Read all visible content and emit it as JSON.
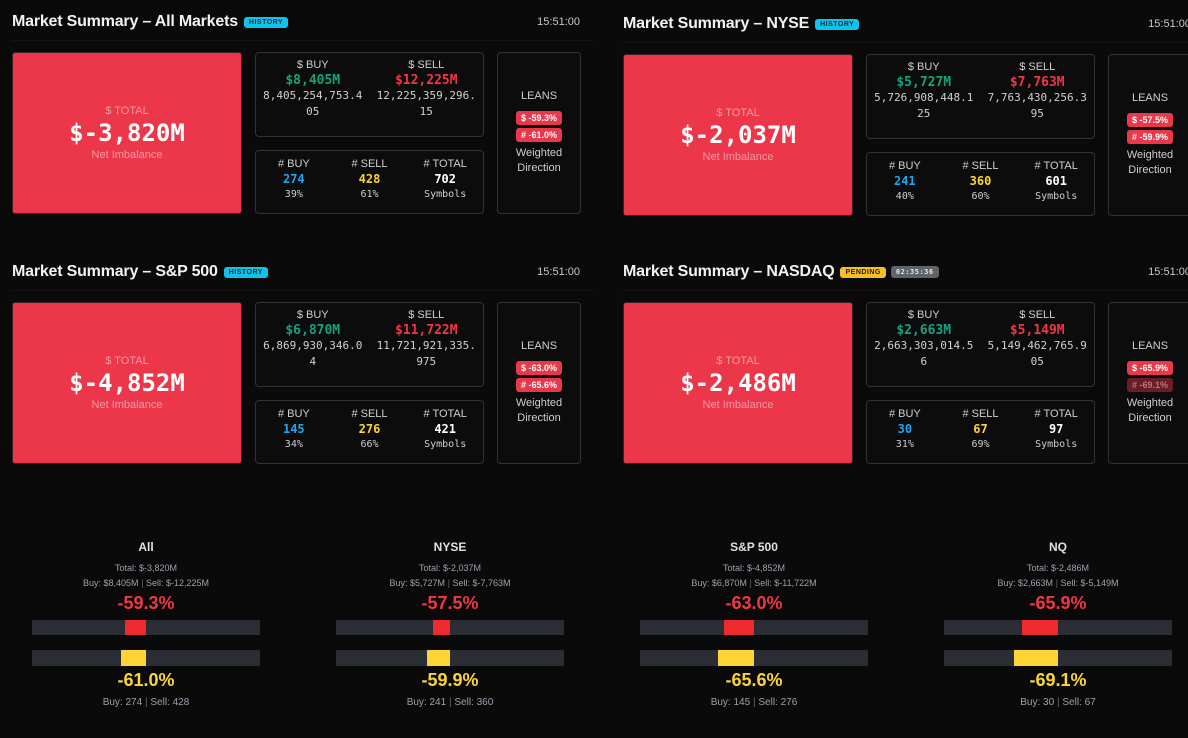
{
  "colors": {
    "buy_money": "#14a37f",
    "sell_money": "#f23645",
    "buy_count": "#1aa8f0",
    "sell_count": "#fcd535",
    "total_bg": "#ec3649",
    "history_badge": "#0ec4ea",
    "pending_badge": "#f5bf2a"
  },
  "labels": {
    "total": "$ TOTAL",
    "net": "Net Imbalance",
    "buy": "$ BUY",
    "sell": "$ SELL",
    "nbuy": "# BUY",
    "nsell": "# SELL",
    "ntotal": "# TOTAL",
    "symbols": "Symbols",
    "leans": "LEANS",
    "weighted": "Weighted",
    "direction": "Direction"
  },
  "panels": [
    {
      "title": "Market Summary – All Markets",
      "badge": "HISTORY",
      "badge_type": "history",
      "time": "15:51:00",
      "total": "$-3,820M",
      "buy": "$8,405M",
      "buy_raw": "8,405,254,753.405",
      "sell": "$12,225M",
      "sell_raw": "12,225,359,296.15",
      "nbuy": "274",
      "nbuy_pct": "39%",
      "nsell": "428",
      "nsell_pct": "61%",
      "ntotal": "702",
      "lean_money": "$ -59.3%",
      "lean_count": "# -61.0%"
    },
    {
      "title": "Market Summary – NYSE",
      "badge": "HISTORY",
      "badge_type": "history",
      "time": "15:51:00",
      "total": "$-2,037M",
      "buy": "$5,727M",
      "buy_raw": "5,726,908,448.125",
      "sell": "$7,763M",
      "sell_raw": "7,763,430,256.395",
      "nbuy": "241",
      "nbuy_pct": "40%",
      "nsell": "360",
      "nsell_pct": "60%",
      "ntotal": "601",
      "lean_money": "$ -57.5%",
      "lean_count": "# -59.9%"
    },
    {
      "title": "Market Summary – S&P 500",
      "badge": "HISTORY",
      "badge_type": "history",
      "time": "15:51:00",
      "total": "$-4,852M",
      "buy": "$6,870M",
      "buy_raw": "6,869,930,346.04",
      "sell": "$11,722M",
      "sell_raw": "11,721,921,335.975",
      "nbuy": "145",
      "nbuy_pct": "34%",
      "nsell": "276",
      "nsell_pct": "66%",
      "ntotal": "421",
      "lean_money": "$ -63.0%",
      "lean_count": "# -65.6%"
    },
    {
      "title": "Market Summary – NASDAQ",
      "badge": "PENDING",
      "badge_type": "pending",
      "timer": "02:35:36",
      "time": "15:51:00",
      "total": "$-2,486M",
      "buy": "$2,663M",
      "buy_raw": "2,663,303,014.56",
      "sell": "$5,149M",
      "sell_raw": "5,149,462,765.905",
      "nbuy": "30",
      "nbuy_pct": "31%",
      "nsell": "67",
      "nsell_pct": "69%",
      "ntotal": "97",
      "lean_money": "$ -65.9%",
      "lean_count": "# -69.1%",
      "lean_count_dim": true
    }
  ],
  "gauges": [
    {
      "name": "All",
      "total": "Total: $-3,820M",
      "buy": "Buy: $8,405M",
      "sell": "Sell: $-12,225M",
      "money_pct": "-59.3%",
      "money_value": -59.3,
      "count_pct": "-61.0%",
      "count_value": -61.0,
      "cbuy": "Buy: 274",
      "csell": "Sell: 428"
    },
    {
      "name": "NYSE",
      "total": "Total: $-2,037M",
      "buy": "Buy: $5,727M",
      "sell": "Sell: $-7,763M",
      "money_pct": "-57.5%",
      "money_value": -57.5,
      "count_pct": "-59.9%",
      "count_value": -59.9,
      "cbuy": "Buy: 241",
      "csell": "Sell: 360"
    },
    {
      "name": "S&P 500",
      "total": "Total: $-4,852M",
      "buy": "Buy: $6,870M",
      "sell": "Sell: $-11,722M",
      "money_pct": "-63.0%",
      "money_value": -63.0,
      "count_pct": "-65.6%",
      "count_value": -65.6,
      "cbuy": "Buy: 145",
      "csell": "Sell: 276"
    },
    {
      "name": "NQ",
      "total": "Total: $-2,486M",
      "buy": "Buy: $2,663M",
      "sell": "Sell: $-5,149M",
      "money_pct": "-65.9%",
      "money_value": -65.9,
      "count_pct": "-69.1%",
      "count_value": -69.1,
      "cbuy": "Buy: 30",
      "csell": "Sell: 67"
    }
  ]
}
